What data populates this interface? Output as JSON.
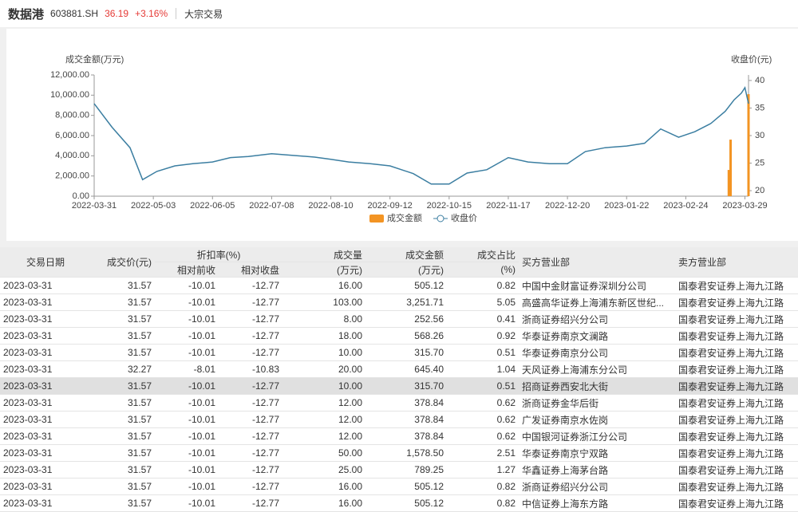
{
  "header": {
    "name": "数据港",
    "code": "603881.SH",
    "price": "36.19",
    "change": "+3.16%",
    "tab": "大宗交易"
  },
  "chart_data": {
    "type": "bar-line",
    "y_label": "成交金额(万元)",
    "y2_label": "收盘价(元)",
    "xlim": [
      "2022-03-31",
      "2023-03-31"
    ],
    "xticks": [
      "2022-03-31",
      "2022-05-03",
      "2022-06-05",
      "2022-07-08",
      "2022-08-10",
      "2022-09-12",
      "2022-10-15",
      "2022-11-17",
      "2022-12-20",
      "2023-01-22",
      "2023-02-24",
      "2023-03-29"
    ],
    "ylim": [
      0,
      12000
    ],
    "yticks": [
      {
        "value": 0,
        "label": "0.00"
      },
      {
        "value": 2000,
        "label": "2,000.00"
      },
      {
        "value": 4000,
        "label": "4,000.00"
      },
      {
        "value": 6000,
        "label": "6,000.00"
      },
      {
        "value": 8000,
        "label": "8,000.00"
      },
      {
        "value": 10000,
        "label": "10,000.00"
      },
      {
        "value": 12000,
        "label": "12,000.00"
      }
    ],
    "y2lim": [
      19,
      41
    ],
    "y2ticks": [
      20,
      25,
      30,
      35,
      40
    ],
    "series": [
      {
        "name": "成交金额",
        "type": "bar",
        "color": "#f39423",
        "x": [
          "2023-03-20",
          "2023-03-21",
          "2023-03-31"
        ],
        "values": [
          2600,
          5600,
          10100
        ]
      },
      {
        "name": "收盘价",
        "type": "line",
        "axis": "y2",
        "color": "#3b7ea1",
        "x": [
          "2022-03-31",
          "2022-04-10",
          "2022-04-20",
          "2022-04-27",
          "2022-05-05",
          "2022-05-15",
          "2022-05-25",
          "2022-06-05",
          "2022-06-15",
          "2022-06-25",
          "2022-07-08",
          "2022-07-20",
          "2022-08-01",
          "2022-08-10",
          "2022-08-20",
          "2022-09-01",
          "2022-09-12",
          "2022-09-25",
          "2022-10-05",
          "2022-10-15",
          "2022-10-25",
          "2022-11-05",
          "2022-11-17",
          "2022-11-28",
          "2022-12-10",
          "2022-12-20",
          "2022-12-30",
          "2023-01-10",
          "2023-01-22",
          "2023-02-01",
          "2023-02-10",
          "2023-02-20",
          "2023-03-01",
          "2023-03-10",
          "2023-03-18",
          "2023-03-23",
          "2023-03-27",
          "2023-03-29",
          "2023-03-31"
        ],
        "values": [
          35.8,
          31.5,
          27.8,
          22.0,
          23.5,
          24.5,
          24.9,
          25.2,
          26.0,
          26.2,
          26.7,
          26.4,
          26.1,
          25.7,
          25.2,
          24.9,
          24.5,
          23.1,
          21.2,
          21.2,
          23.2,
          23.8,
          26.0,
          25.2,
          24.9,
          24.9,
          27.1,
          27.8,
          28.1,
          28.6,
          31.2,
          29.7,
          30.7,
          32.2,
          34.4,
          36.5,
          37.7,
          38.7,
          35.8
        ]
      }
    ]
  },
  "table": {
    "headers": [
      "交易日期",
      "成交价(元)",
      "折扣率(%)",
      "相对前收",
      "相对收盘",
      "成交量",
      "(万元)",
      "成交金额",
      "(万元)",
      "成交占比",
      "(%)",
      "买方营业部",
      "卖方营业部"
    ],
    "highlight_row": 6,
    "rows": [
      [
        "2023-03-31",
        "31.57",
        "-10.01",
        "-12.77",
        "16.00",
        "505.12",
        "0.82",
        "中国中金财富证券深圳分公司",
        "国泰君安证券上海九江路"
      ],
      [
        "2023-03-31",
        "31.57",
        "-10.01",
        "-12.77",
        "103.00",
        "3,251.71",
        "5.05",
        "高盛高华证券上海浦东新区世纪...",
        "国泰君安证券上海九江路"
      ],
      [
        "2023-03-31",
        "31.57",
        "-10.01",
        "-12.77",
        "8.00",
        "252.56",
        "0.41",
        "浙商证券绍兴分公司",
        "国泰君安证券上海九江路"
      ],
      [
        "2023-03-31",
        "31.57",
        "-10.01",
        "-12.77",
        "18.00",
        "568.26",
        "0.92",
        "华泰证券南京文澜路",
        "国泰君安证券上海九江路"
      ],
      [
        "2023-03-31",
        "31.57",
        "-10.01",
        "-12.77",
        "10.00",
        "315.70",
        "0.51",
        "华泰证券南京分公司",
        "国泰君安证券上海九江路"
      ],
      [
        "2023-03-31",
        "32.27",
        "-8.01",
        "-10.83",
        "20.00",
        "645.40",
        "1.04",
        "天风证券上海浦东分公司",
        "国泰君安证券上海九江路"
      ],
      [
        "2023-03-31",
        "31.57",
        "-10.01",
        "-12.77",
        "10.00",
        "315.70",
        "0.51",
        "招商证券西安北大街",
        "国泰君安证券上海九江路"
      ],
      [
        "2023-03-31",
        "31.57",
        "-10.01",
        "-12.77",
        "12.00",
        "378.84",
        "0.62",
        "浙商证券金华后街",
        "国泰君安证券上海九江路"
      ],
      [
        "2023-03-31",
        "31.57",
        "-10.01",
        "-12.77",
        "12.00",
        "378.84",
        "0.62",
        "广发证券南京水佐岗",
        "国泰君安证券上海九江路"
      ],
      [
        "2023-03-31",
        "31.57",
        "-10.01",
        "-12.77",
        "12.00",
        "378.84",
        "0.62",
        "中国银河证券浙江分公司",
        "国泰君安证券上海九江路"
      ],
      [
        "2023-03-31",
        "31.57",
        "-10.01",
        "-12.77",
        "50.00",
        "1,578.50",
        "2.51",
        "华泰证券南京宁双路",
        "国泰君安证券上海九江路"
      ],
      [
        "2023-03-31",
        "31.57",
        "-10.01",
        "-12.77",
        "25.00",
        "789.25",
        "1.27",
        "华鑫证券上海茅台路",
        "国泰君安证券上海九江路"
      ],
      [
        "2023-03-31",
        "31.57",
        "-10.01",
        "-12.77",
        "16.00",
        "505.12",
        "0.82",
        "浙商证券绍兴分公司",
        "国泰君安证券上海九江路"
      ],
      [
        "2023-03-31",
        "31.57",
        "-10.01",
        "-12.77",
        "16.00",
        "505.12",
        "0.82",
        "中信证券上海东方路",
        "国泰君安证券上海九江路"
      ]
    ]
  }
}
